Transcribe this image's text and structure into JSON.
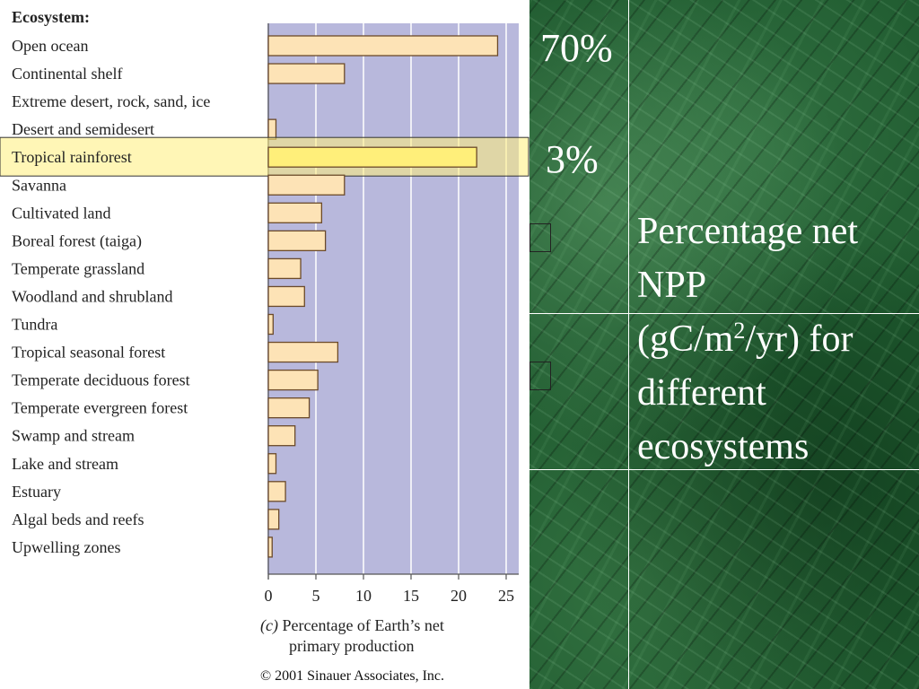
{
  "chart_data": {
    "type": "bar",
    "category_header": "Ecosystem:",
    "categories": [
      "Open ocean",
      "Continental shelf",
      "Extreme desert, rock, sand, ice",
      "Desert and semidesert",
      "Tropical rainforest",
      "Savanna",
      "Cultivated land",
      "Boreal forest (taiga)",
      "Temperate grassland",
      "Woodland and shrubland",
      "Tundra",
      "Tropical seasonal forest",
      "Temperate deciduous forest",
      "Temperate evergreen forest",
      "Swamp and stream",
      "Lake and stream",
      "Estuary",
      "Algal beds and reefs",
      "Upwelling zones"
    ],
    "values": [
      24.1,
      8.0,
      0.0,
      0.8,
      21.9,
      8.0,
      5.6,
      6.0,
      3.4,
      3.8,
      0.5,
      7.3,
      5.2,
      4.3,
      2.8,
      0.8,
      1.8,
      1.1,
      0.4
    ],
    "highlighted_category": "Tropical rainforest",
    "xlim": [
      0,
      26
    ],
    "xticks": [
      0,
      5,
      10,
      15,
      20,
      25
    ],
    "caption_prefix": "(c)",
    "caption_line1": "Percentage of Earth’s net",
    "caption_line2": "primary production",
    "copyright": "© 2001 Sinauer Associates, Inc.",
    "grid": true,
    "colors": {
      "plot_background": "#b8b8dc",
      "bar_fill": "#fde3b6",
      "bar_stroke": "#6b4a2a",
      "highlight_fill": "#ffef7a",
      "gridline": "#ffffff"
    }
  },
  "annotations": {
    "pct_open_ocean": "70%",
    "pct_rainforest": "3%",
    "description_lines": [
      "Percentage net",
      "NPP",
      "(gC/m",
      "2",
      "/yr) for",
      "different",
      "ecosystems"
    ]
  },
  "background": {
    "marble_color": "#1f5a2f"
  }
}
